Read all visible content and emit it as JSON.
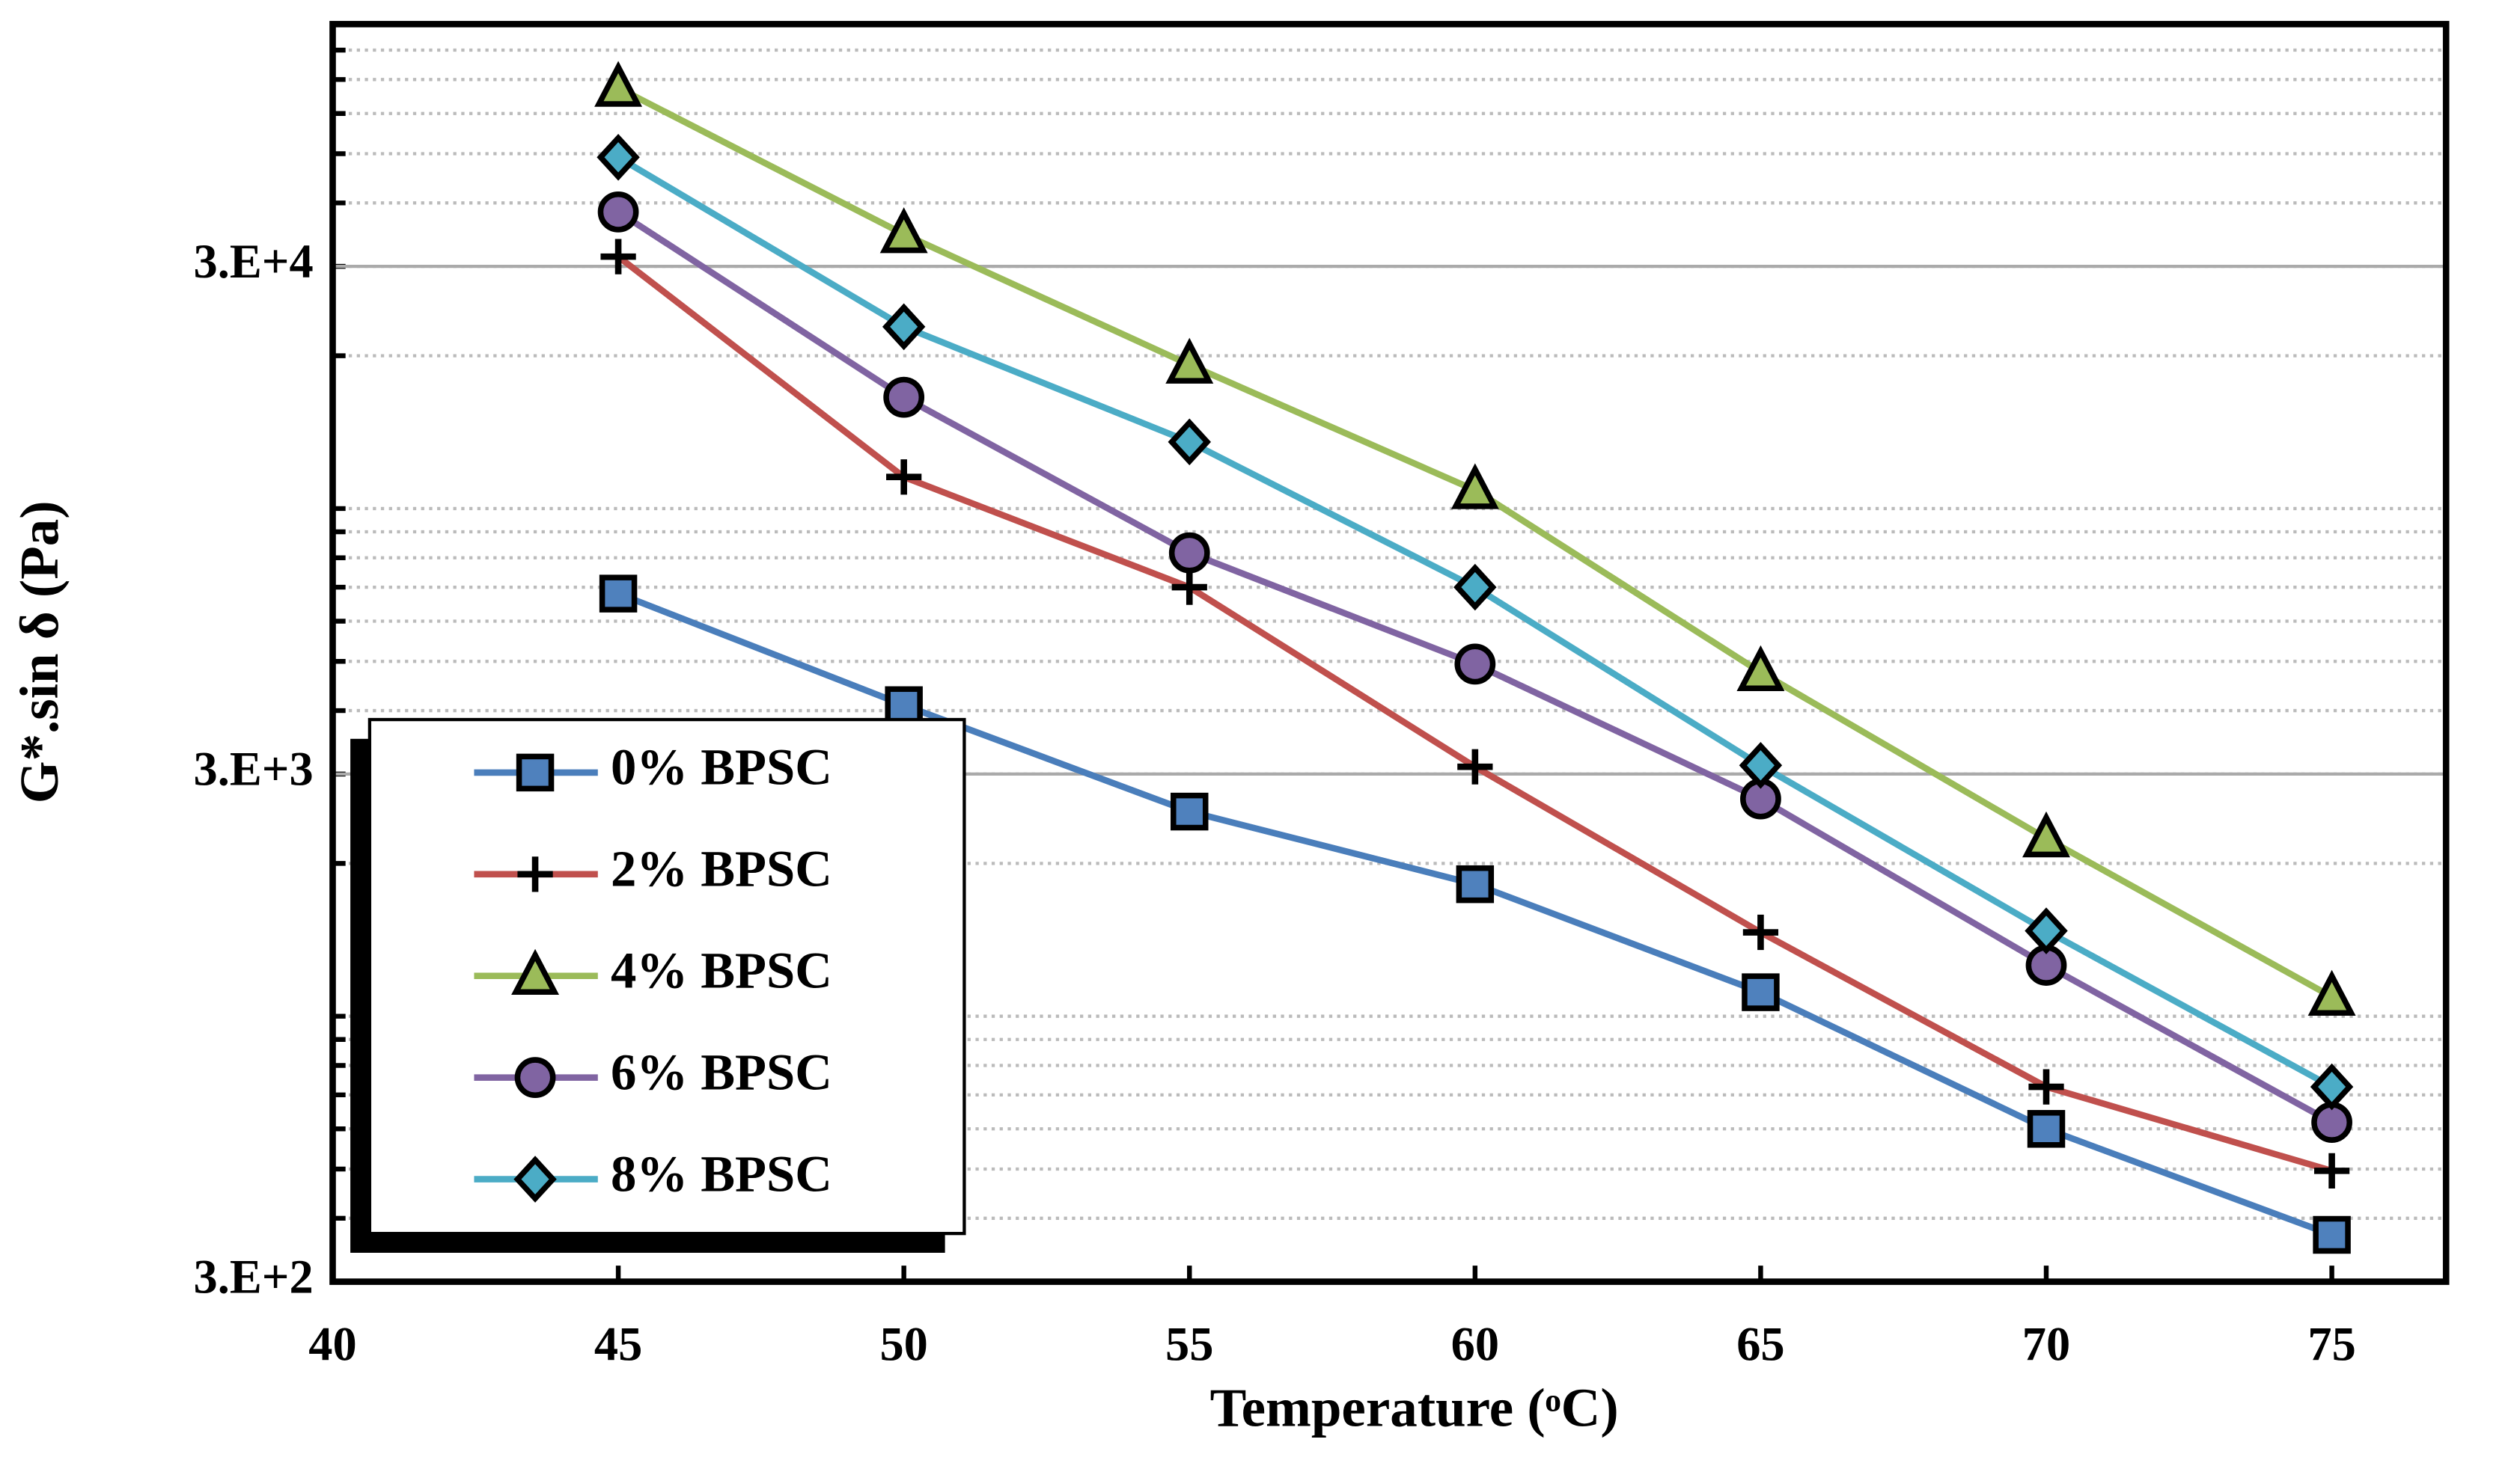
{
  "chart_data": {
    "type": "line",
    "x_label": "Temperature (ᵒC)",
    "y_label": "G*.sin δ  (Pa)",
    "x": [
      45,
      50,
      55,
      60,
      65,
      70,
      75
    ],
    "xlim": [
      40,
      77
    ],
    "xticks": [
      40,
      45,
      50,
      55,
      60,
      65,
      70,
      75
    ],
    "ylim": [
      300,
      90000
    ],
    "yticks": [
      {
        "value": 300,
        "label": "3.E+2"
      },
      {
        "value": 3000,
        "label": "3.E+3"
      },
      {
        "value": 30000,
        "label": "3.E+4"
      }
    ],
    "log_y": true,
    "grid": true,
    "legend": "lower left",
    "series": [
      {
        "name": "0% BPSC",
        "color": "#4a7ebb",
        "marker": "square",
        "marker_color": "#4f81bd",
        "values": [
          6800,
          4100,
          2530,
          1820,
          1115,
          600,
          371
        ]
      },
      {
        "name": "2% BPSC",
        "color": "#c0504d",
        "marker": "plus",
        "marker_color": "#000000",
        "values": [
          31350,
          11540,
          7000,
          3100,
          1463,
          726,
          496
        ]
      },
      {
        "name": "4% BPSC",
        "color": "#9bbb59",
        "marker": "triangle",
        "marker_color": "#9bbb59",
        "values": [
          67400,
          34700,
          19200,
          10870,
          4760,
          2240,
          1092
        ]
      },
      {
        "name": "6% BPSC",
        "color": "#8064a2",
        "marker": "circle",
        "marker_color": "#8064a2",
        "values": [
          38400,
          16570,
          8180,
          4940,
          2680,
          1260,
          618
        ]
      },
      {
        "name": "8% BPSC",
        "color": "#4bacc6",
        "marker": "diamond",
        "marker_color": "#4bacc6",
        "values": [
          49200,
          22810,
          13530,
          7000,
          3120,
          1473,
          726
        ]
      }
    ]
  }
}
